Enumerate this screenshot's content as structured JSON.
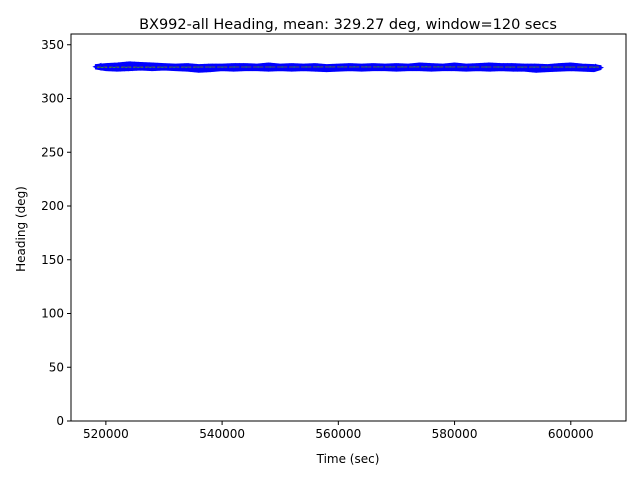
{
  "chart_data": {
    "type": "line",
    "title": "BX992-all Heading, mean: 329.27 deg, window=120 secs",
    "xlabel": "Time (sec)",
    "ylabel": "Heading (deg)",
    "xlim": [
      514000,
      609500
    ],
    "ylim": [
      0,
      360
    ],
    "x_ticks": [
      520000,
      540000,
      560000,
      580000,
      600000
    ],
    "x_tick_labels": [
      "520000",
      "540000",
      "560000",
      "580000",
      "600000"
    ],
    "y_ticks": [
      0,
      50,
      100,
      150,
      200,
      250,
      300,
      350
    ],
    "y_tick_labels": [
      "0",
      "50",
      "100",
      "150",
      "200",
      "250",
      "300",
      "350"
    ],
    "grid": false,
    "series": [
      {
        "role": "raw",
        "color": "#0000ff",
        "x": [
          518200,
          520000,
          522000,
          524000,
          526000,
          528000,
          530000,
          532000,
          534000,
          536000,
          538000,
          540000,
          542000,
          544000,
          546000,
          548000,
          550000,
          552000,
          554000,
          556000,
          558000,
          560000,
          562000,
          564000,
          566000,
          568000,
          570000,
          572000,
          574000,
          576000,
          578000,
          580000,
          582000,
          584000,
          586000,
          588000,
          590000,
          592000,
          594000,
          596000,
          598000,
          600000,
          602000,
          604000,
          605200
        ],
        "upper": [
          331.5,
          332.5,
          333.0,
          334.0,
          333.5,
          333.0,
          332.5,
          332.0,
          332.5,
          331.5,
          332.0,
          332.0,
          332.5,
          332.5,
          332.0,
          333.0,
          332.0,
          332.5,
          332.0,
          332.5,
          331.5,
          332.0,
          332.5,
          332.0,
          332.5,
          332.0,
          332.5,
          332.0,
          333.0,
          332.5,
          332.0,
          333.0,
          332.0,
          332.5,
          333.0,
          332.5,
          332.5,
          332.0,
          332.0,
          331.5,
          332.5,
          333.0,
          332.0,
          331.5,
          330.5
        ],
        "lower": [
          327.5,
          326.0,
          325.5,
          326.0,
          326.5,
          326.0,
          326.5,
          326.0,
          325.5,
          324.5,
          325.0,
          326.0,
          325.5,
          326.0,
          326.0,
          325.5,
          326.0,
          325.5,
          326.0,
          325.5,
          325.0,
          325.5,
          326.0,
          325.5,
          326.0,
          326.0,
          325.5,
          326.0,
          326.0,
          325.5,
          326.0,
          326.0,
          325.5,
          326.0,
          325.5,
          326.0,
          325.5,
          325.5,
          324.5,
          325.0,
          325.5,
          326.0,
          325.5,
          325.0,
          327.0
        ]
      },
      {
        "role": "moving-window",
        "color": "#2ca02c",
        "x": [
          518500,
          530000,
          545000,
          560000,
          575000,
          590000,
          604800
        ],
        "values": [
          328.8,
          329.0,
          329.3,
          329.4,
          329.5,
          329.2,
          329.1
        ]
      },
      {
        "role": "mean",
        "color": "#555555",
        "x": [
          518500,
          604800
        ],
        "values": [
          329.27,
          329.27
        ]
      }
    ]
  }
}
